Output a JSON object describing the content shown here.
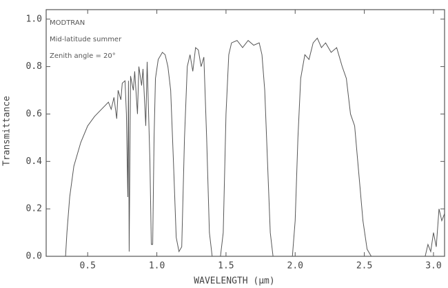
{
  "chart_data": {
    "type": "line",
    "x_label": "WAVELENGTH (μm)",
    "y_label": "Transmittance",
    "annotations": [
      "MODTRAN",
      "Mid-latitude summer",
      "Zenith angle = 20°"
    ],
    "x": [
      0.34,
      0.35,
      0.37,
      0.4,
      0.45,
      0.5,
      0.55,
      0.6,
      0.65,
      0.67,
      0.69,
      0.71,
      0.72,
      0.74,
      0.75,
      0.77,
      0.78,
      0.79,
      0.795,
      0.8,
      0.81,
      0.83,
      0.84,
      0.86,
      0.87,
      0.89,
      0.9,
      0.92,
      0.93,
      0.95,
      0.96,
      0.97,
      0.98,
      0.99,
      1.01,
      1.04,
      1.06,
      1.08,
      1.1,
      1.12,
      1.14,
      1.16,
      1.18,
      1.2,
      1.22,
      1.24,
      1.26,
      1.28,
      1.3,
      1.32,
      1.34,
      1.36,
      1.38,
      1.4,
      1.46,
      1.48,
      1.5,
      1.52,
      1.54,
      1.58,
      1.62,
      1.66,
      1.7,
      1.74,
      1.76,
      1.78,
      1.8,
      1.82,
      1.84,
      1.98,
      2.0,
      2.02,
      2.04,
      2.07,
      2.1,
      2.13,
      2.16,
      2.19,
      2.22,
      2.26,
      2.3,
      2.34,
      2.37,
      2.4,
      2.43,
      2.46,
      2.49,
      2.52,
      2.55,
      2.94,
      2.96,
      2.98,
      3.0,
      3.02,
      3.04,
      3.06,
      3.08
    ],
    "series": [
      {
        "color": "#555555",
        "values": [
          0,
          0.1,
          0.25,
          0.38,
          0.48,
          0.55,
          0.59,
          0.62,
          0.65,
          0.62,
          0.67,
          0.58,
          0.7,
          0.66,
          0.73,
          0.74,
          0.6,
          0.25,
          0.74,
          0.02,
          0.76,
          0.7,
          0.78,
          0.6,
          0.8,
          0.72,
          0.79,
          0.55,
          0.82,
          0.4,
          0.05,
          0.05,
          0.5,
          0.75,
          0.83,
          0.86,
          0.85,
          0.8,
          0.7,
          0.4,
          0.08,
          0.02,
          0.04,
          0.5,
          0.8,
          0.85,
          0.78,
          0.88,
          0.87,
          0.8,
          0.84,
          0.5,
          0.1,
          0,
          0,
          0.1,
          0.6,
          0.85,
          0.9,
          0.91,
          0.88,
          0.91,
          0.89,
          0.9,
          0.85,
          0.7,
          0.4,
          0.1,
          0,
          0,
          0.15,
          0.5,
          0.75,
          0.85,
          0.83,
          0.9,
          0.92,
          0.88,
          0.9,
          0.86,
          0.88,
          0.8,
          0.75,
          0.6,
          0.55,
          0.35,
          0.15,
          0.03,
          0,
          0,
          0.05,
          0.02,
          0.1,
          0.04,
          0.2,
          0.15,
          0.18
        ]
      }
    ],
    "xlim": [
      0.2,
      3.08
    ],
    "ylim": [
      0,
      1.04
    ],
    "xticks": [
      0.5,
      {
        "value": 1.0,
        "label": "1.0"
      },
      1.5,
      {
        "value": 2.0,
        "label": "2.0"
      },
      2.5,
      {
        "value": 3.0,
        "label": "3.0"
      }
    ],
    "yticks": [
      {
        "value": 0,
        "label": "0.0"
      },
      0.2,
      0.4,
      0.6,
      0.8,
      {
        "value": 1.0,
        "label": "1.0"
      }
    ]
  }
}
